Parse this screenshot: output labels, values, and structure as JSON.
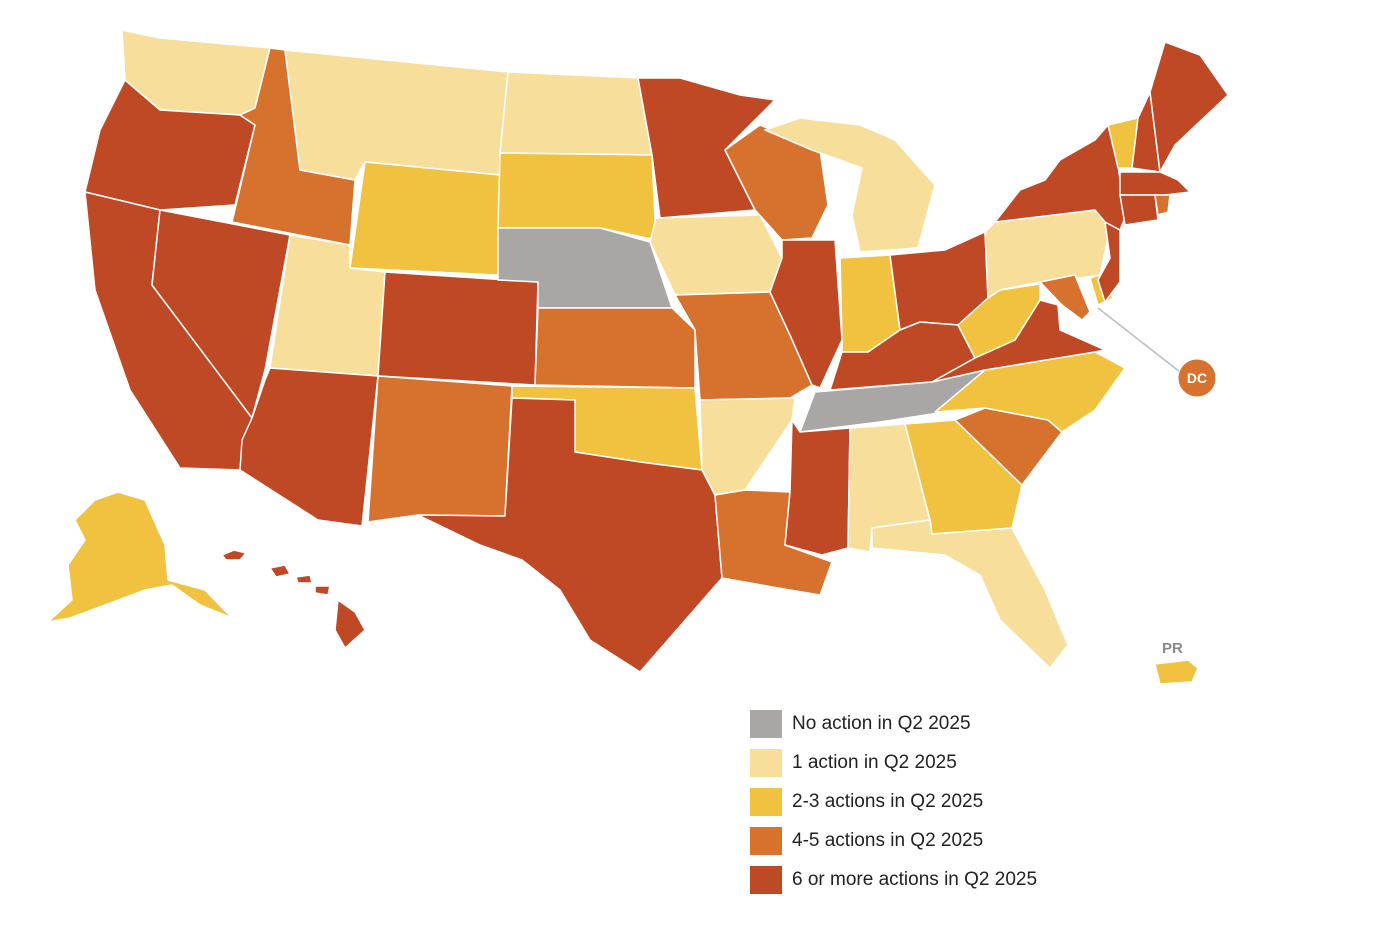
{
  "colors": {
    "none": "#a8a7a5",
    "one": "#f7df9b",
    "two_three": "#f0c240",
    "four_five": "#d6712e",
    "six_plus": "#bf4825"
  },
  "legend": [
    {
      "key": "none",
      "label": "No action in Q2 2025"
    },
    {
      "key": "one",
      "label": "1 action in Q2 2025"
    },
    {
      "key": "two_three",
      "label": "2-3 actions in Q2 2025"
    },
    {
      "key": "four_five",
      "label": "4-5 actions in Q2 2025"
    },
    {
      "key": "six_plus",
      "label": "6 or more actions in Q2 2025"
    }
  ],
  "labels": {
    "pr": "PR",
    "dc": "DC"
  },
  "states": {
    "WA": "one",
    "OR": "six_plus",
    "CA": "six_plus",
    "NV": "six_plus",
    "ID": "four_five",
    "MT": "one",
    "WY": "two_three",
    "UT": "one",
    "AZ": "six_plus",
    "CO": "six_plus",
    "NM": "four_five",
    "ND": "one",
    "SD": "two_three",
    "NE": "none",
    "KS": "four_five",
    "OK": "two_three",
    "TX": "six_plus",
    "MN": "six_plus",
    "IA": "one",
    "MO": "four_five",
    "AR": "one",
    "LA": "four_five",
    "WI": "four_five",
    "IL": "six_plus",
    "MI": "one",
    "IN": "two_three",
    "OH": "six_plus",
    "KY": "six_plus",
    "TN": "none",
    "MS": "six_plus",
    "AL": "one",
    "GA": "two_three",
    "FL": "one",
    "SC": "four_five",
    "NC": "two_three",
    "VA": "six_plus",
    "WV": "two_three",
    "PA": "one",
    "NY": "six_plus",
    "NJ": "six_plus",
    "DE": "two_three",
    "MD": "four_five",
    "CT": "six_plus",
    "RI": "four_five",
    "MA": "six_plus",
    "VT": "two_three",
    "NH": "six_plus",
    "ME": "six_plus",
    "AK": "two_three",
    "HI": "six_plus",
    "PR": "two_three",
    "DC": "four_five"
  }
}
